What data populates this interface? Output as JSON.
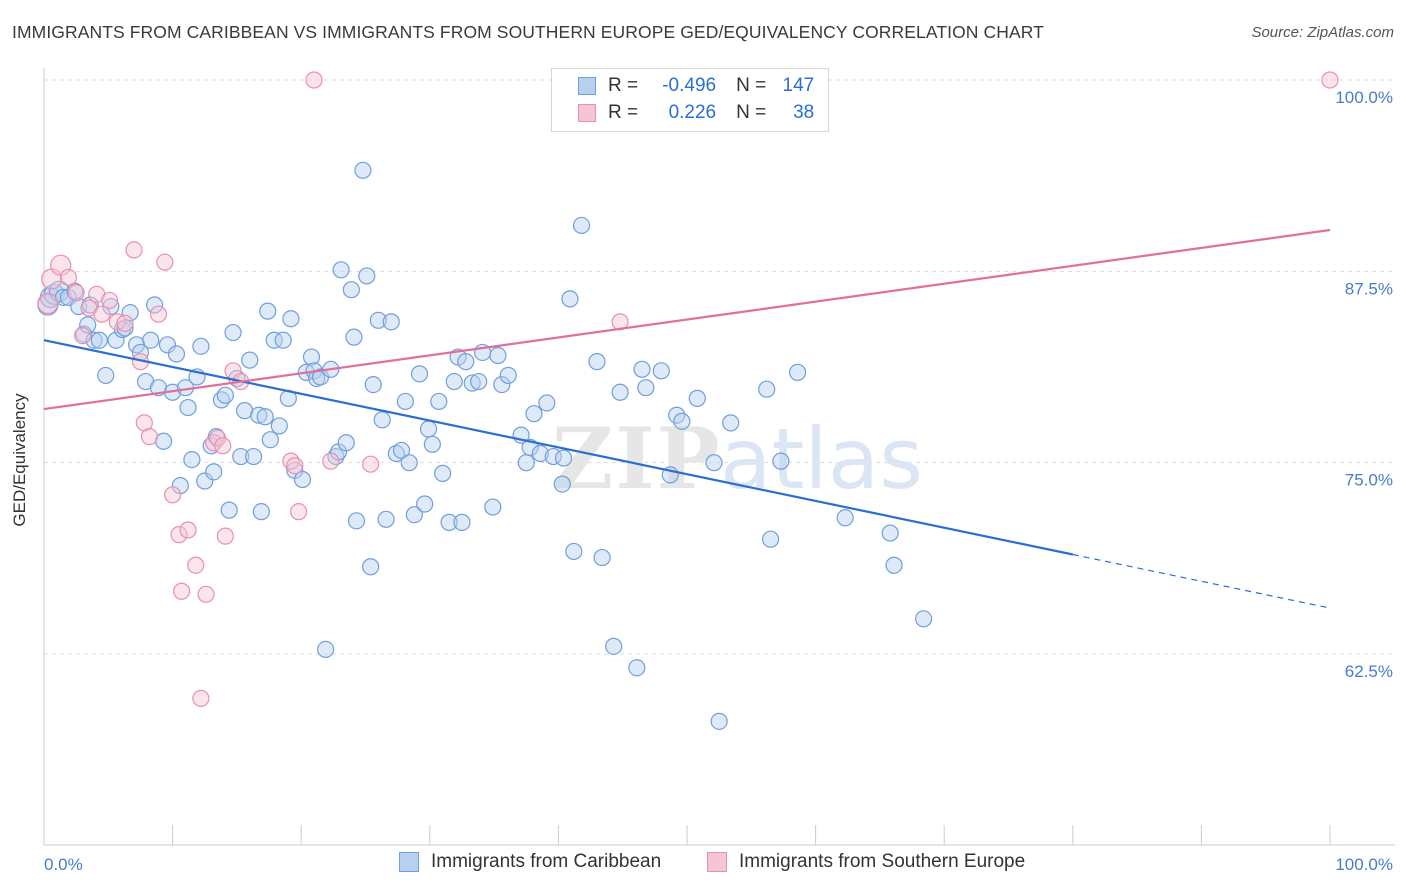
{
  "header": {
    "title": "IMMIGRANTS FROM CARIBBEAN VS IMMIGRANTS FROM SOUTHERN EUROPE GED/EQUIVALENCY CORRELATION CHART",
    "source": "Source: ZipAtlas.com"
  },
  "legend": {
    "rows": [
      {
        "r_label": "R =",
        "r_value": "-0.496",
        "n_label": "N =",
        "n_value": "147"
      },
      {
        "r_label": "R =",
        "r_value": "0.226",
        "n_label": "N =",
        "n_value": "38"
      }
    ]
  },
  "bottom_legend": {
    "series_a": "Immigrants from Caribbean",
    "series_b": "Immigrants from Southern Europe"
  },
  "colors": {
    "blue": "#6f9fdc",
    "blue_fill": "#b7d0f0",
    "blue_line": "#2a6fd0",
    "pink": "#e890ad",
    "pink_fill": "#f6c5d5",
    "pink_line": "#e0709a",
    "grid": "#dddddd",
    "tick_text": "#4a7bc8"
  },
  "chart_data": {
    "type": "scatter",
    "title": "IMMIGRANTS FROM CARIBBEAN VS IMMIGRANTS FROM SOUTHERN EUROPE GED/EQUIVALENCY CORRELATION CHART",
    "xlabel": "",
    "ylabel": "GED/Equivalency",
    "xlim": [
      0,
      100
    ],
    "ylim": [
      50,
      101
    ],
    "x_tick_labels": [
      "0.0%",
      "100.0%"
    ],
    "y_ticks": [
      62.5,
      75.0,
      87.5,
      100.0
    ],
    "y_tick_labels": [
      "62.5%",
      "75.0%",
      "87.5%",
      "100.0%"
    ],
    "grid": true,
    "watermark": "ZIPatlas",
    "series": [
      {
        "name": "Immigrants from Caribbean",
        "color": "blue",
        "trend": {
          "x0": 0,
          "y0": 83.0,
          "x1": 80,
          "y1": 69.0,
          "dash_to_x": 100,
          "dash_to_y": 65.5
        },
        "points": [
          [
            0.3,
            85.3
          ],
          [
            0.5,
            85.8
          ],
          [
            0.8,
            86.0
          ],
          [
            1.2,
            86.2
          ],
          [
            1.5,
            85.8
          ],
          [
            1.9,
            85.8
          ],
          [
            2.4,
            86.2
          ],
          [
            2.7,
            85.2
          ],
          [
            3.1,
            83.4
          ],
          [
            3.4,
            84.0
          ],
          [
            3.6,
            85.3
          ],
          [
            3.9,
            83.0
          ],
          [
            4.3,
            83.0
          ],
          [
            4.8,
            80.7
          ],
          [
            5.2,
            85.2
          ],
          [
            5.6,
            83.0
          ],
          [
            6.1,
            83.7
          ],
          [
            6.3,
            83.8
          ],
          [
            6.7,
            84.8
          ],
          [
            7.2,
            82.7
          ],
          [
            7.5,
            82.2
          ],
          [
            7.9,
            80.3
          ],
          [
            8.3,
            83.0
          ],
          [
            8.6,
            85.3
          ],
          [
            8.9,
            79.9
          ],
          [
            9.3,
            76.4
          ],
          [
            9.6,
            82.7
          ],
          [
            10.0,
            79.6
          ],
          [
            10.3,
            82.1
          ],
          [
            10.6,
            73.5
          ],
          [
            11.0,
            79.9
          ],
          [
            11.2,
            78.6
          ],
          [
            11.5,
            75.2
          ],
          [
            11.9,
            80.6
          ],
          [
            12.2,
            82.6
          ],
          [
            12.5,
            73.8
          ],
          [
            13.0,
            76.1
          ],
          [
            13.2,
            74.4
          ],
          [
            13.4,
            76.7
          ],
          [
            13.8,
            79.1
          ],
          [
            14.1,
            79.4
          ],
          [
            14.4,
            71.9
          ],
          [
            14.7,
            83.5
          ],
          [
            15.0,
            80.5
          ],
          [
            15.3,
            75.4
          ],
          [
            15.6,
            78.4
          ],
          [
            16.0,
            81.7
          ],
          [
            16.3,
            75.4
          ],
          [
            16.7,
            78.1
          ],
          [
            16.9,
            71.8
          ],
          [
            17.2,
            78.0
          ],
          [
            17.4,
            84.9
          ],
          [
            17.6,
            76.5
          ],
          [
            17.9,
            83.0
          ],
          [
            18.3,
            77.4
          ],
          [
            18.6,
            83.0
          ],
          [
            19.0,
            79.2
          ],
          [
            19.2,
            84.4
          ],
          [
            19.5,
            74.5
          ],
          [
            20.1,
            73.9
          ],
          [
            20.4,
            80.9
          ],
          [
            20.8,
            81.9
          ],
          [
            21.0,
            81.0
          ],
          [
            21.2,
            80.5
          ],
          [
            21.5,
            80.6
          ],
          [
            21.9,
            62.8
          ],
          [
            22.3,
            81.1
          ],
          [
            22.7,
            75.4
          ],
          [
            22.9,
            75.7
          ],
          [
            23.1,
            87.6
          ],
          [
            23.5,
            76.3
          ],
          [
            23.9,
            86.3
          ],
          [
            24.1,
            83.2
          ],
          [
            24.3,
            71.2
          ],
          [
            24.8,
            94.1
          ],
          [
            25.1,
            87.2
          ],
          [
            25.4,
            68.2
          ],
          [
            25.6,
            80.1
          ],
          [
            26.0,
            84.3
          ],
          [
            26.3,
            77.8
          ],
          [
            26.6,
            71.3
          ],
          [
            27.0,
            84.2
          ],
          [
            27.4,
            75.6
          ],
          [
            27.8,
            75.8
          ],
          [
            28.1,
            79.0
          ],
          [
            28.4,
            75.0
          ],
          [
            28.8,
            71.6
          ],
          [
            29.2,
            80.8
          ],
          [
            29.6,
            72.3
          ],
          [
            29.9,
            77.2
          ],
          [
            30.2,
            76.2
          ],
          [
            30.7,
            79.0
          ],
          [
            31.0,
            74.3
          ],
          [
            31.5,
            71.1
          ],
          [
            31.9,
            80.3
          ],
          [
            32.2,
            81.9
          ],
          [
            32.5,
            71.1
          ],
          [
            32.8,
            81.6
          ],
          [
            33.3,
            80.2
          ],
          [
            33.8,
            80.3
          ],
          [
            34.1,
            82.2
          ],
          [
            34.9,
            72.1
          ],
          [
            35.3,
            82.0
          ],
          [
            35.6,
            80.1
          ],
          [
            36.1,
            80.7
          ],
          [
            37.1,
            76.8
          ],
          [
            37.5,
            75.0
          ],
          [
            37.8,
            76.0
          ],
          [
            38.1,
            78.2
          ],
          [
            38.6,
            75.6
          ],
          [
            39.1,
            78.9
          ],
          [
            39.6,
            75.4
          ],
          [
            40.3,
            73.6
          ],
          [
            40.4,
            75.3
          ],
          [
            40.9,
            85.7
          ],
          [
            41.2,
            69.2
          ],
          [
            41.8,
            90.5
          ],
          [
            43.0,
            81.6
          ],
          [
            43.4,
            68.8
          ],
          [
            44.3,
            63.0
          ],
          [
            44.8,
            79.6
          ],
          [
            46.1,
            61.6
          ],
          [
            46.5,
            81.1
          ],
          [
            46.8,
            79.9
          ],
          [
            48.0,
            81.0
          ],
          [
            48.7,
            74.2
          ],
          [
            49.2,
            78.1
          ],
          [
            49.6,
            77.7
          ],
          [
            50.8,
            79.2
          ],
          [
            52.1,
            75.0
          ],
          [
            52.5,
            58.1
          ],
          [
            53.4,
            77.6
          ],
          [
            56.2,
            79.8
          ],
          [
            56.5,
            70.0
          ],
          [
            57.3,
            75.1
          ],
          [
            58.6,
            80.9
          ],
          [
            62.3,
            71.4
          ],
          [
            65.8,
            70.4
          ],
          [
            66.1,
            68.3
          ],
          [
            68.4,
            64.8
          ]
        ]
      },
      {
        "name": "Immigrants from Southern Europe",
        "color": "pink",
        "trend": {
          "x0": 0,
          "y0": 78.5,
          "x1": 100,
          "y1": 90.2
        },
        "points": [
          [
            0.3,
            85.4
          ],
          [
            0.6,
            87.0
          ],
          [
            1.3,
            87.9
          ],
          [
            1.9,
            87.1
          ],
          [
            2.5,
            86.1
          ],
          [
            3.0,
            83.3
          ],
          [
            3.5,
            85.1
          ],
          [
            4.1,
            86.0
          ],
          [
            4.5,
            84.7
          ],
          [
            5.1,
            85.6
          ],
          [
            5.7,
            84.2
          ],
          [
            6.3,
            84.1
          ],
          [
            7.0,
            88.9
          ],
          [
            7.5,
            81.6
          ],
          [
            7.8,
            77.6
          ],
          [
            8.2,
            76.7
          ],
          [
            8.9,
            84.7
          ],
          [
            9.4,
            88.1
          ],
          [
            10.0,
            72.9
          ],
          [
            10.5,
            70.3
          ],
          [
            10.7,
            66.6
          ],
          [
            11.2,
            70.6
          ],
          [
            11.8,
            68.3
          ],
          [
            12.2,
            59.6
          ],
          [
            12.6,
            66.4
          ],
          [
            13.2,
            76.3
          ],
          [
            13.5,
            76.6
          ],
          [
            13.9,
            76.1
          ],
          [
            14.1,
            70.2
          ],
          [
            14.7,
            81.0
          ],
          [
            15.3,
            80.3
          ],
          [
            19.2,
            75.1
          ],
          [
            19.5,
            74.8
          ],
          [
            19.8,
            71.8
          ],
          [
            21.0,
            100.0
          ],
          [
            22.3,
            75.1
          ],
          [
            25.4,
            74.9
          ],
          [
            44.8,
            84.2
          ],
          [
            100.0,
            100.0
          ]
        ]
      }
    ]
  }
}
